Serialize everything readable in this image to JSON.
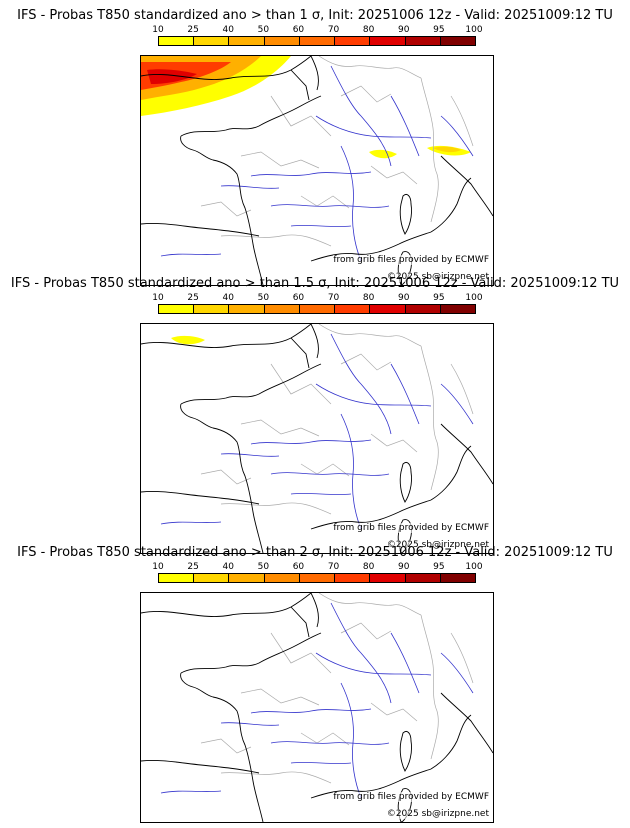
{
  "panels": [
    {
      "title": "IFS - Probas T850  standardized ano > than 1 σ, Init: 20251006 12z - Valid: 20251009:12 TU",
      "threshold": "1 σ",
      "heavy_anomaly": true
    },
    {
      "title": "IFS - Probas T850  standardized ano > than 1.5 σ, Init: 20251006 12z - Valid: 20251009:12 TU",
      "threshold": "1.5 σ",
      "heavy_anomaly": false
    },
    {
      "title": "IFS - Probas T850  standardized ano > than 2 σ, Init: 20251006 12z - Valid: 20251009:12 TU",
      "threshold": "2 σ",
      "heavy_anomaly": false
    }
  ],
  "legend": {
    "ticks": [
      "10",
      "25",
      "40",
      "50",
      "60",
      "70",
      "80",
      "90",
      "95",
      "100"
    ],
    "colors": [
      "#ffff00",
      "#ffd700",
      "#ffb000",
      "#ff8c00",
      "#ff6a00",
      "#ff3c00",
      "#e00000",
      "#b00000",
      "#800000"
    ]
  },
  "credits": {
    "source": "from grib files provided by ECMWF",
    "copyright": "©2025 sb@irizpne.net"
  },
  "map_colors": {
    "coast": "#000000",
    "rivers": "#3333cc",
    "borders": "#aaaaaa"
  }
}
